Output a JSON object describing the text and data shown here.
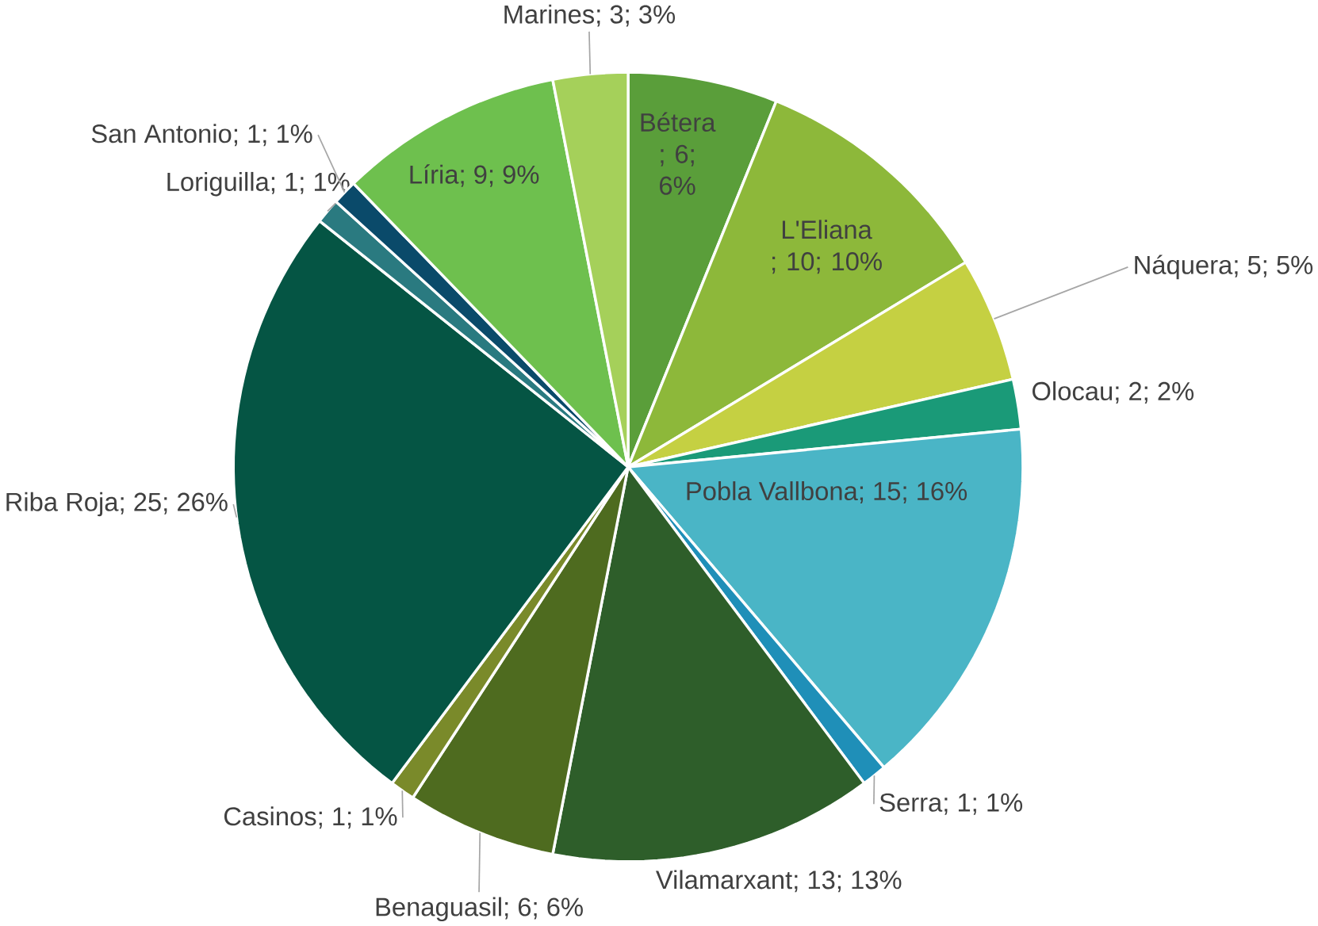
{
  "chart_data": {
    "type": "pie",
    "categories": [
      "Bétera",
      "L'Eliana",
      "Náquera",
      "Olocau",
      "Pobla Vallbona",
      "Serra",
      "Vilamarxant",
      "Benaguasil",
      "Casinos",
      "Riba Roja",
      "Loriguilla",
      "San Antonio",
      "Líria",
      "Marines"
    ],
    "values": [
      6,
      10,
      5,
      2,
      15,
      1,
      13,
      6,
      1,
      25,
      1,
      1,
      9,
      3
    ],
    "colors": [
      "#5a9e3a",
      "#8db83a",
      "#c5d042",
      "#1a9a78",
      "#4ab5c6",
      "#1f8fb8",
      "#2e5e2a",
      "#4e6b1f",
      "#7a8a2a",
      "#055544",
      "#2a7a80",
      "#0a4a6a",
      "#6ec04e",
      "#a5d05a"
    ],
    "value_labels": [
      "; 6; 6%",
      "; 10; 10%",
      "; 5; 5%",
      "; 2; 2%",
      "; 15; 16%",
      "; 1; 1%",
      "; 13; 13%",
      "; 6; 6%",
      "; 1; 1%",
      "; 25; 26%",
      "; 1; 1%",
      "; 1; 1%",
      "; 9; 9%",
      "; 3; 3%"
    ]
  }
}
